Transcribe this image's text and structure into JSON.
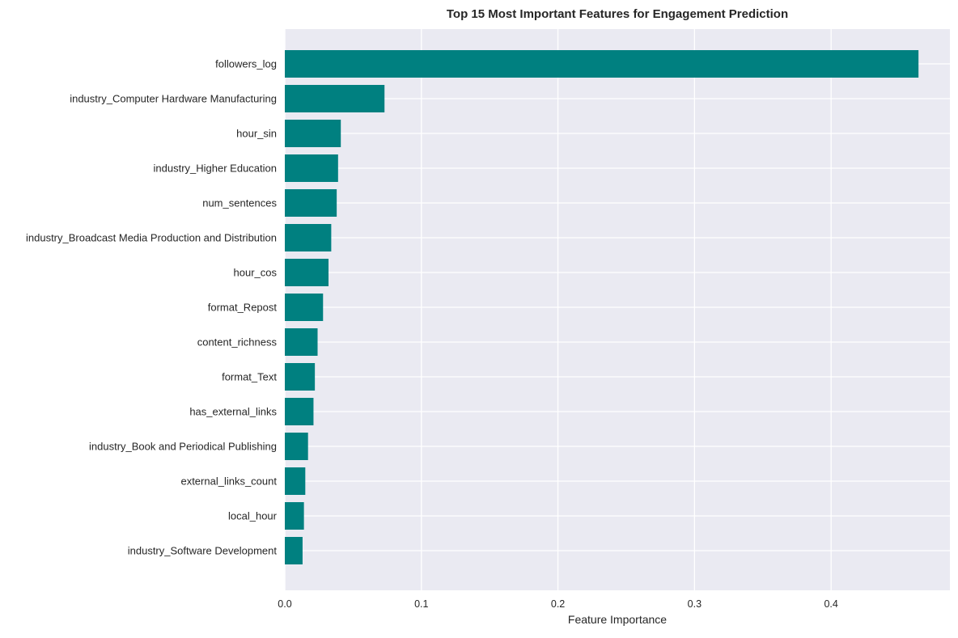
{
  "chart_data": {
    "type": "bar",
    "orientation": "horizontal",
    "title": "Top 15 Most Important Features for Engagement Prediction",
    "xlabel": "Feature Importance",
    "ylabel": "",
    "xlim": [
      0,
      0.487
    ],
    "xticks": [
      0.0,
      0.1,
      0.2,
      0.3,
      0.4
    ],
    "xtick_labels": [
      "0.0",
      "0.1",
      "0.2",
      "0.3",
      "0.4"
    ],
    "grid": true,
    "legend": false,
    "bar_color": "#008080",
    "background_color": "#eaeaf2",
    "categories": [
      "followers_log",
      "industry_Computer Hardware Manufacturing",
      "hour_sin",
      "industry_Higher Education",
      "num_sentences",
      "industry_Broadcast Media Production and Distribution",
      "hour_cos",
      "format_Repost",
      "content_richness",
      "format_Text",
      "has_external_links",
      "industry_Book and Periodical Publishing",
      "external_links_count",
      "local_hour",
      "industry_Software Development"
    ],
    "values": [
      0.464,
      0.073,
      0.041,
      0.039,
      0.038,
      0.034,
      0.032,
      0.028,
      0.024,
      0.022,
      0.021,
      0.017,
      0.015,
      0.014,
      0.013
    ]
  }
}
